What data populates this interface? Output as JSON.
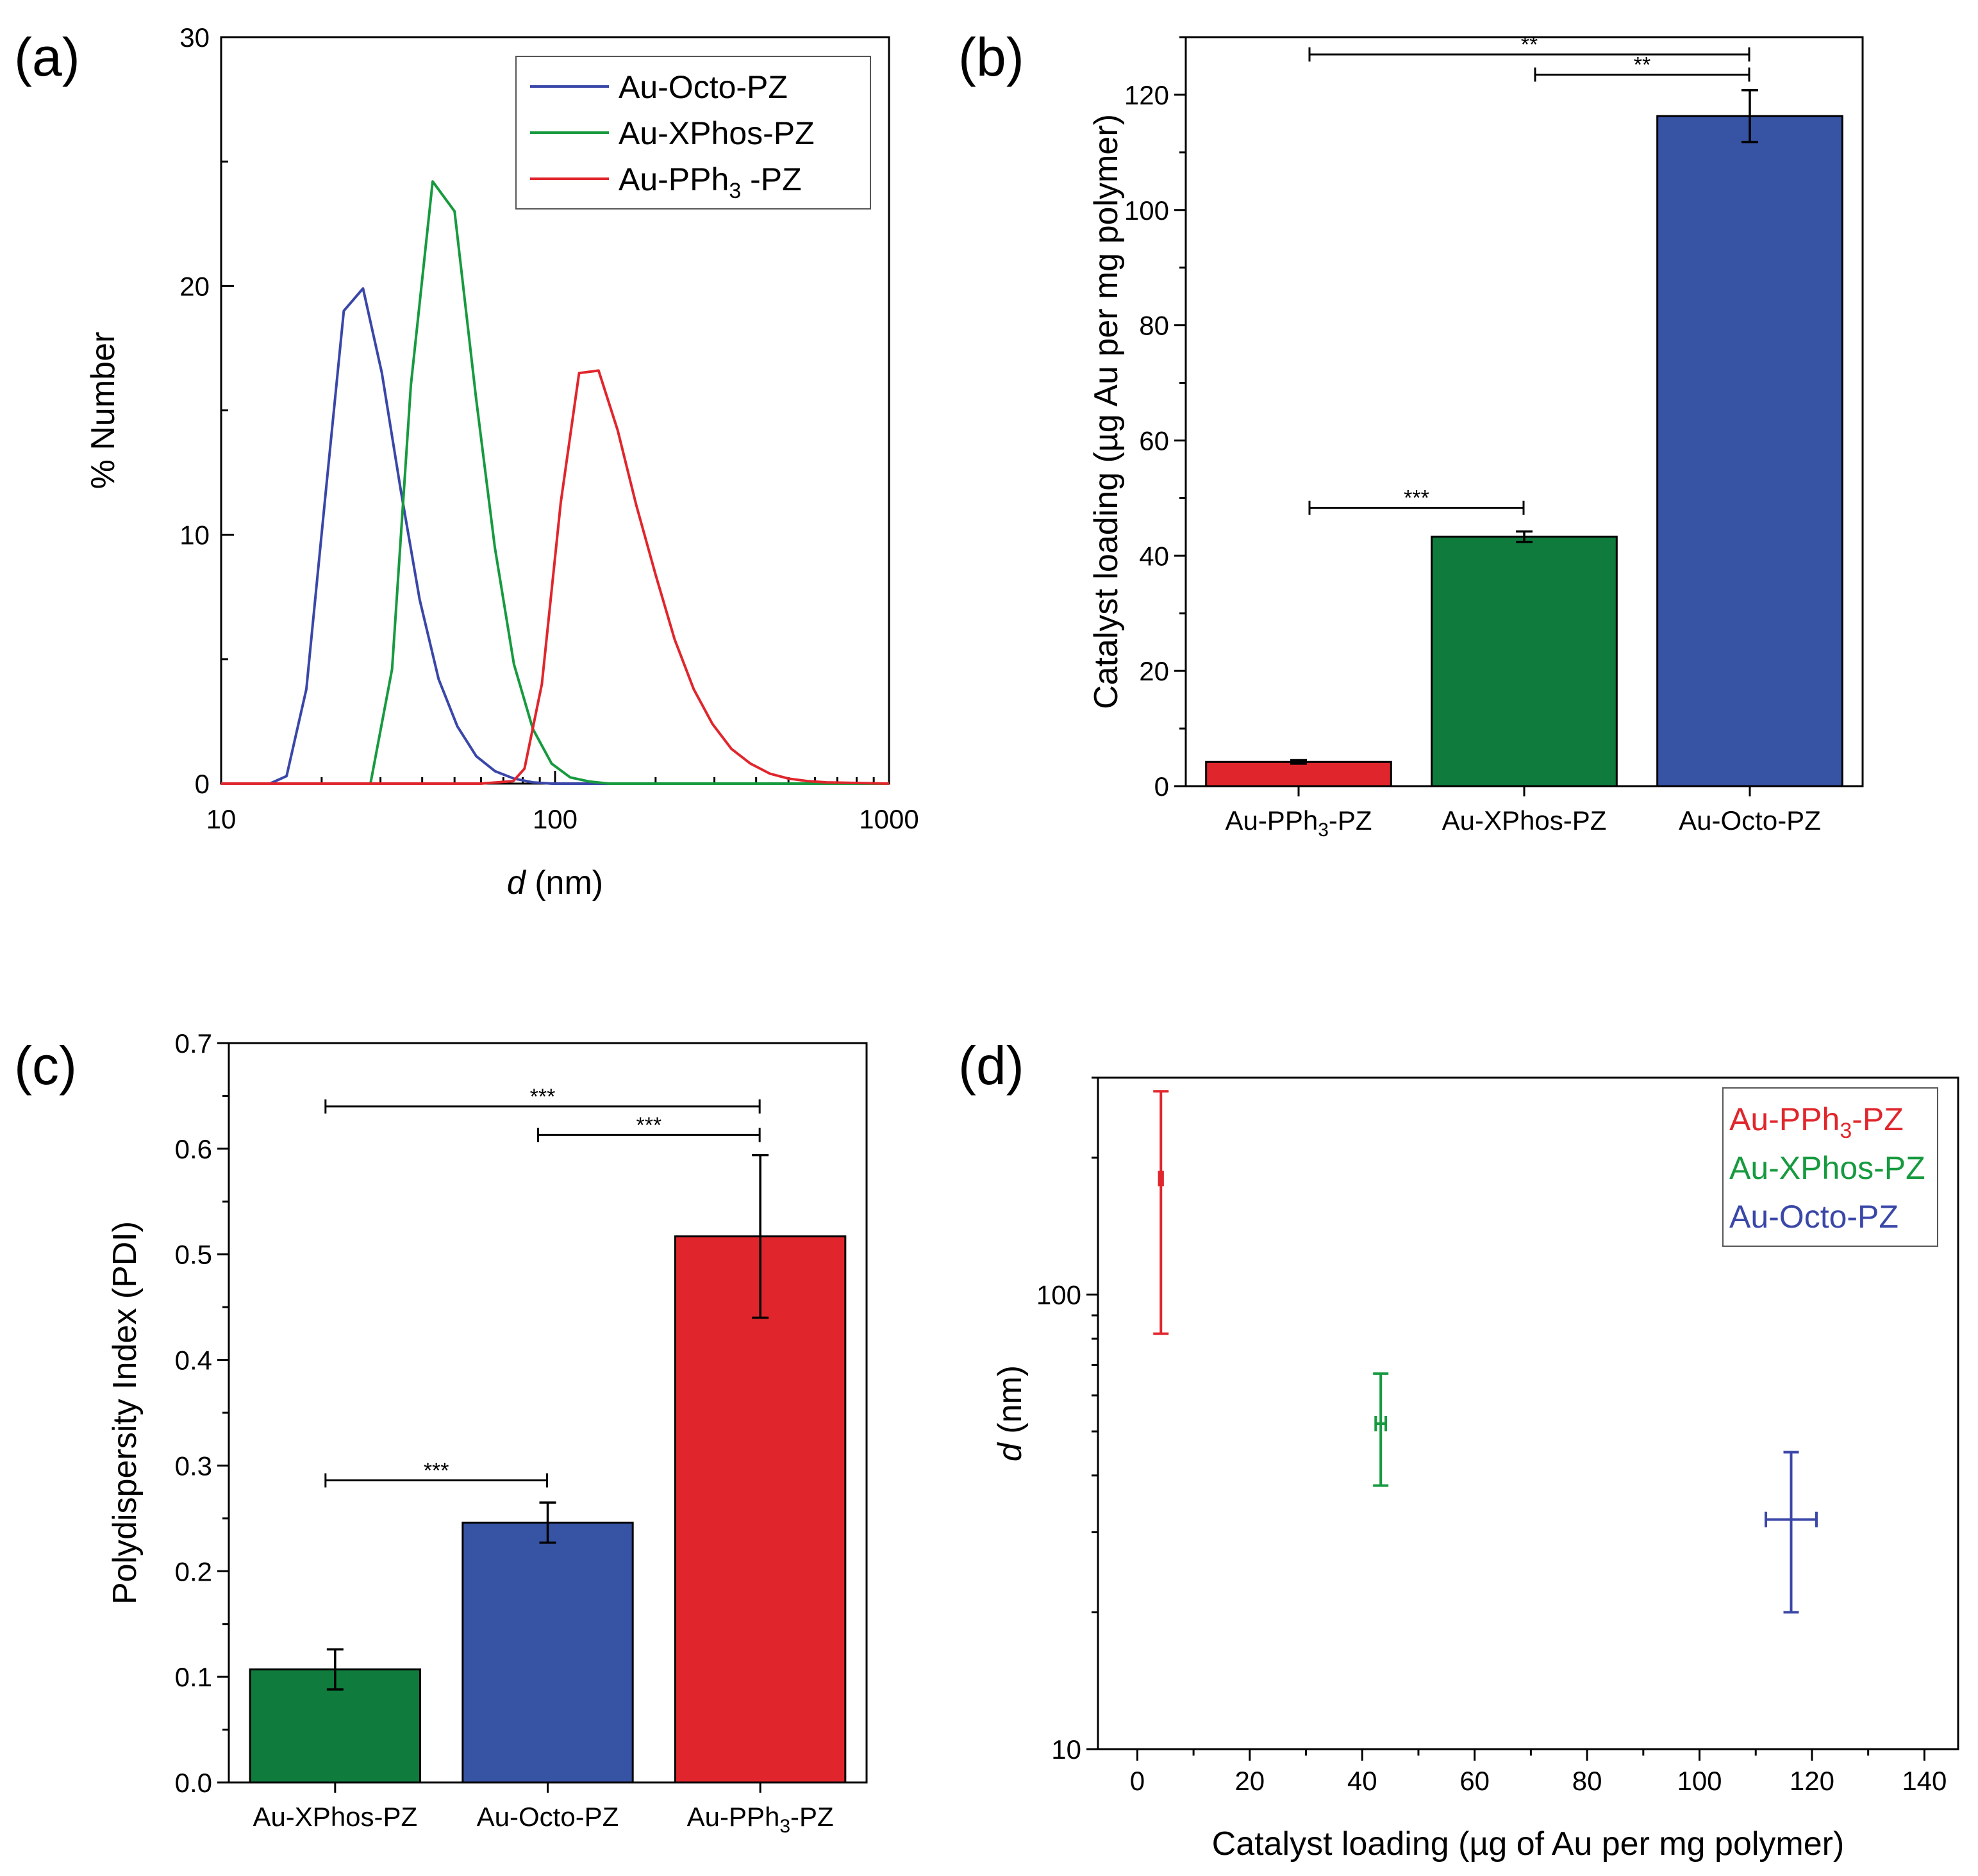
{
  "chart_data": [
    {
      "id": "a",
      "panel_label": "(a)",
      "type": "line",
      "xscale": "log",
      "xlim": [
        10,
        1000
      ],
      "ylim": [
        0,
        30
      ],
      "xlabel_italic": "d",
      "xlabel_rest": " (nm)",
      "ylabel": "% Number",
      "xticks": [
        10,
        100,
        1000
      ],
      "xtick_labels": [
        "10",
        "100",
        "1000"
      ],
      "yticks": [
        0,
        10,
        20,
        30
      ],
      "ytick_labels": [
        "0",
        "10",
        "20",
        "30"
      ],
      "legend_position": "top-right",
      "series": [
        {
          "name": "Au-Octo-PZ",
          "legend_main": "Au-Octo-PZ",
          "legend_sub": "",
          "legend_post": "",
          "color": "#3a47a8",
          "x": [
            10,
            14,
            15.7,
            18,
            20.5,
            23.3,
            26.6,
            30.3,
            34.5,
            39.3,
            44.8,
            51,
            58.1,
            66.1,
            75.3,
            85.8,
            97.7,
            111,
            127,
            145,
            200,
            1000
          ],
          "y": [
            0,
            0,
            0.3,
            3.8,
            11.5,
            19,
            19.9,
            16.5,
            11.8,
            7.4,
            4.2,
            2.3,
            1.1,
            0.5,
            0.2,
            0.05,
            0,
            0,
            0,
            0,
            0,
            0
          ]
        },
        {
          "name": "Au-XPhos-PZ",
          "legend_main": "Au-XPhos-PZ",
          "legend_sub": "",
          "legend_post": "",
          "color": "#179a3f",
          "x": [
            10,
            25,
            28,
            32.5,
            37,
            43,
            50,
            58,
            66,
            75.3,
            85.8,
            97.7,
            111,
            127,
            145,
            200,
            1000
          ],
          "y": [
            0,
            0,
            0,
            4.6,
            16,
            24.2,
            23,
            15.5,
            9.5,
            4.8,
            2.2,
            0.8,
            0.25,
            0.08,
            0,
            0,
            0
          ]
        },
        {
          "name": "Au-PPh3-PZ",
          "legend_main": "Au-PPh",
          "legend_sub": "3",
          "legend_post": " -PZ",
          "color": "#e0262c",
          "x": [
            10,
            60,
            75,
            81,
            91.3,
            104,
            118,
            135,
            154,
            175,
            200,
            228,
            260,
            296,
            337,
            385,
            440,
            500,
            570,
            650,
            1000
          ],
          "y": [
            0,
            0,
            0.1,
            0.6,
            4,
            11.3,
            16.5,
            16.6,
            14.2,
            11.2,
            8.4,
            5.8,
            3.8,
            2.4,
            1.4,
            0.8,
            0.4,
            0.2,
            0.1,
            0.05,
            0
          ]
        }
      ]
    },
    {
      "id": "b",
      "panel_label": "(b)",
      "type": "bar",
      "ylim": [
        0,
        130
      ],
      "yticks": [
        0,
        20,
        40,
        60,
        80,
        100,
        120
      ],
      "ytick_labels": [
        "0",
        "20",
        "40",
        "60",
        "80",
        "100",
        "120"
      ],
      "ylabel": "Catalyst loading (µg Au per mg polymer)",
      "categories": [
        "Au-PPh3-PZ",
        "Au-XPhos-PZ",
        "Au-Octo-PZ"
      ],
      "category_main": [
        "Au-PPh",
        "Au-XPhos-PZ",
        "Au-Octo-PZ"
      ],
      "category_sub": [
        "3",
        "",
        ""
      ],
      "category_post": [
        "-PZ",
        "",
        ""
      ],
      "values": [
        4.2,
        43.3,
        116.3
      ],
      "errors": [
        0.3,
        0.9,
        4.5
      ],
      "colors": [
        "#e0262c",
        "#0f7b3c",
        "#3753a4"
      ],
      "significance": [
        {
          "from": 0,
          "to": 2,
          "y": 127,
          "label": "**"
        },
        {
          "from": 1,
          "to": 2,
          "y": 123.5,
          "label": "**"
        },
        {
          "from": 0,
          "to": 1,
          "y": 48.3,
          "label": "***"
        }
      ]
    },
    {
      "id": "c",
      "panel_label": "(c)",
      "type": "bar",
      "ylim": [
        0,
        0.7
      ],
      "yticks": [
        0,
        0.1,
        0.2,
        0.3,
        0.4,
        0.5,
        0.6,
        0.7
      ],
      "ytick_labels": [
        "0.0",
        "0.1",
        "0.2",
        "0.3",
        "0.4",
        "0.5",
        "0.6",
        "0.7"
      ],
      "ylabel": "Polydispersity Index (PDI)",
      "categories": [
        "Au-XPhos-PZ",
        "Au-Octo-PZ",
        "Au-PPh3-PZ"
      ],
      "category_main": [
        "Au-XPhos-PZ",
        "Au-Octo-PZ",
        "Au-PPh"
      ],
      "category_sub": [
        "",
        "",
        "3"
      ],
      "category_post": [
        "",
        "",
        "-PZ"
      ],
      "values": [
        0.107,
        0.246,
        0.517
      ],
      "errors": [
        0.019,
        0.019,
        0.077
      ],
      "colors": [
        "#0f7b3c",
        "#3753a4",
        "#e0262c"
      ],
      "significance": [
        {
          "from": 0,
          "to": 2,
          "y": 0.64,
          "label": "***"
        },
        {
          "from": 1,
          "to": 2,
          "y": 0.613,
          "label": "***"
        },
        {
          "from": 0,
          "to": 1,
          "y": 0.286,
          "label": "***"
        }
      ]
    },
    {
      "id": "d",
      "panel_label": "(d)",
      "type": "scatter",
      "yscale": "log",
      "xlim": [
        -7,
        146
      ],
      "ylim": [
        10,
        300
      ],
      "xticks": [
        0,
        20,
        40,
        60,
        80,
        100,
        120,
        140
      ],
      "xtick_labels": [
        "0",
        "20",
        "40",
        "60",
        "80",
        "100",
        "120",
        "140"
      ],
      "yticks": [
        10,
        100
      ],
      "ytick_labels": [
        "10",
        "100"
      ],
      "xlabel": "Catalyst loading (µg of Au per mg polymer)",
      "ylabel_italic": "d",
      "ylabel_rest": " (nm)",
      "legend_position": "top-right",
      "points": [
        {
          "name": "Au-PPh3-PZ",
          "legend_main": "Au-PPh",
          "legend_sub": "3",
          "legend_post": "-PZ",
          "color": "#e0262c",
          "x": 4.2,
          "xerr": 0.3,
          "y": 180,
          "ylow": 82,
          "yhigh": 280
        },
        {
          "name": "Au-XPhos-PZ",
          "legend_main": "Au-XPhos-PZ",
          "legend_sub": "",
          "legend_post": "",
          "color": "#179a3f",
          "x": 43.3,
          "xerr": 0.9,
          "y": 52,
          "ylow": 38,
          "yhigh": 67
        },
        {
          "name": "Au-Octo-PZ",
          "legend_main": "Au-Octo-PZ",
          "legend_sub": "",
          "legend_post": "",
          "color": "#3a47a8",
          "x": 116.3,
          "xerr": 4.5,
          "y": 32,
          "ylow": 20,
          "yhigh": 45
        }
      ]
    }
  ]
}
